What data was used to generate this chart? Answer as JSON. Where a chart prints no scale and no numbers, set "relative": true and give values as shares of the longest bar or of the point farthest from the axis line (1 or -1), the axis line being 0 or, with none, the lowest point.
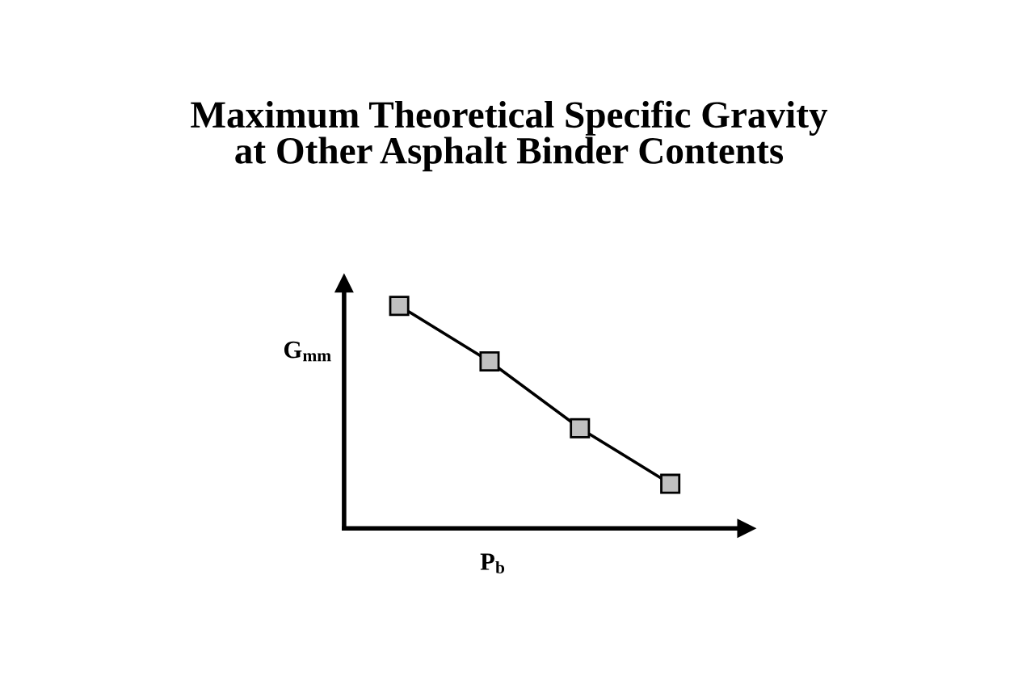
{
  "chart_data": {
    "type": "line",
    "title": "Maximum Theoretical Specific Gravity\nat Other Asphalt Binder Contents",
    "xlabel": "P$_{b}$",
    "ylabel": "G$_{mm}$",
    "relative": true,
    "categories": [
      null,
      null,
      null,
      null
    ],
    "series": [
      {
        "color": "#000000",
        "values": [
          1,
          0.75,
          0.45,
          0.2
        ]
      }
    ],
    "marker": "square",
    "line_style": "solid",
    "grid": false
  }
}
